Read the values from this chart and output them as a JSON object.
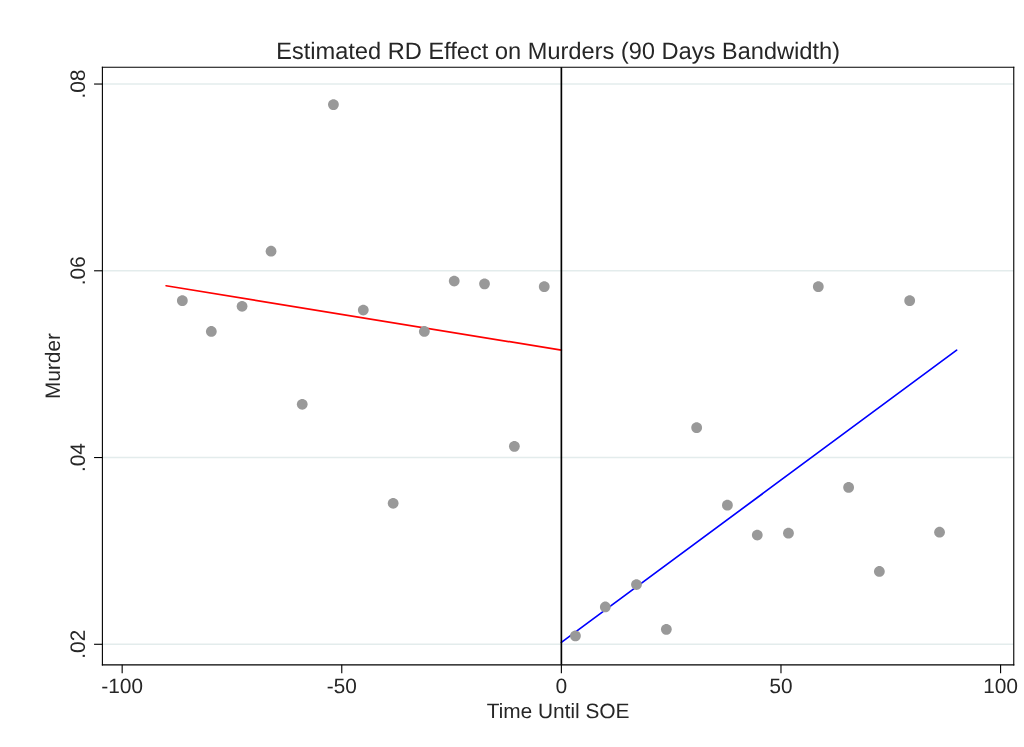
{
  "chart_data": {
    "type": "scatter",
    "title": "Estimated RD Effect on Murders (90 Days Bandwidth)",
    "xlabel": "Time Until SOE",
    "ylabel": "Murder",
    "series": [
      {
        "marker": "circle",
        "color": "#999999",
        "x": [
          -86.3,
          -79.7,
          -72.7,
          -66.1,
          -59,
          -51.9,
          -45.1,
          -38.3,
          -31.2,
          -24.4,
          -17.5,
          -10.7,
          -3.9,
          3.2,
          10,
          17.1,
          23.9,
          30.8,
          37.8,
          44.6,
          51.7,
          58.5,
          65.4,
          72.4,
          79.3,
          86.1
        ],
        "values": [
          0.0568,
          0.0535,
          0.0562,
          0.0621,
          0.0457,
          0.0778,
          0.0558,
          0.0351,
          0.0535,
          0.0589,
          0.0586,
          0.0412,
          0.0583,
          0.0209,
          0.024,
          0.0264,
          0.0216,
          0.0432,
          0.0349,
          0.0317,
          0.0319,
          0.0583,
          0.0368,
          0.0278,
          0.0568,
          0.032
        ]
      },
      {
        "type": "line",
        "color": "#ff0000",
        "x": [
          -90,
          0
        ],
        "values": [
          0.0584,
          0.0515
        ]
      },
      {
        "type": "line",
        "color": "#0000ff",
        "x": [
          0,
          90
        ],
        "values": [
          0.0202,
          0.0515
        ]
      }
    ],
    "ref_lines": [
      {
        "axis": "x",
        "value": 0,
        "color": "#000000"
      }
    ],
    "xlim": [
      -104.5,
      103
    ],
    "ylim": [
      0.0178,
      0.0818
    ],
    "xticks": [
      -100,
      -50,
      0,
      50,
      100
    ],
    "yticks": [
      {
        "value": 0.02,
        "label": ".02"
      },
      {
        "value": 0.04,
        "label": ".04"
      },
      {
        "value": 0.06,
        "label": ".06"
      },
      {
        "value": 0.08,
        "label": ".08"
      }
    ],
    "grid": "y"
  }
}
